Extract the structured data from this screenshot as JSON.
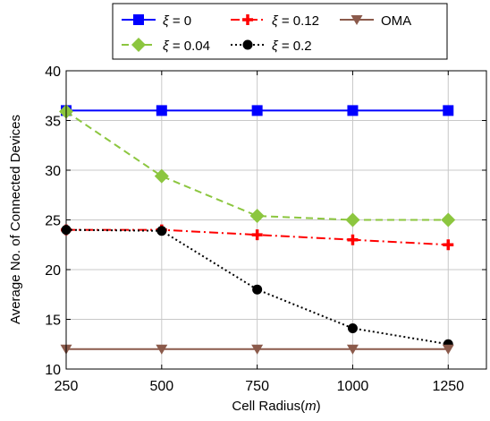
{
  "chart_data": {
    "type": "line",
    "title": "",
    "xlabel": "Cell Radius(m)",
    "xlabel_text": "Cell Radius(",
    "xlabel_unit": "m",
    "xlabel_close": ")",
    "ylabel": "Average No. of Connected Devices",
    "xlim": [
      250,
      1350
    ],
    "ylim": [
      10,
      40
    ],
    "xticks": [
      250,
      500,
      750,
      1000,
      1250
    ],
    "yticks": [
      10,
      15,
      20,
      25,
      30,
      35,
      40
    ],
    "grid": true,
    "legend_position": "top",
    "x": [
      250,
      500,
      750,
      1000,
      1250
    ],
    "series": [
      {
        "name_sym": "ξ",
        "name_rest": " = 0",
        "name": "ξ = 0",
        "color": "#0000ff",
        "line": "solid",
        "marker": "square",
        "values": [
          36,
          36,
          36,
          36,
          36
        ]
      },
      {
        "name_sym": "ξ",
        "name_rest": " = 0.04",
        "name": "ξ = 0.04",
        "color": "#8cc63f",
        "line": "dashed",
        "marker": "diamond",
        "values": [
          35.9,
          29.4,
          25.4,
          25.0,
          25.0
        ]
      },
      {
        "name_sym": "ξ",
        "name_rest": " = 0.12",
        "name": "ξ = 0.12",
        "color": "#ff0000",
        "line": "dashdot",
        "marker": "plus",
        "values": [
          24.0,
          24.0,
          23.5,
          23.0,
          22.5
        ]
      },
      {
        "name_sym": "ξ",
        "name_rest": " = 0.2",
        "name": "ξ = 0.2",
        "color": "#000000",
        "line": "dotted",
        "marker": "circle",
        "values": [
          24.0,
          23.9,
          18.0,
          14.1,
          12.5
        ]
      },
      {
        "name_sym": "",
        "name_rest": "OMA",
        "name": "OMA",
        "color": "#8b5a4b",
        "line": "solid",
        "marker": "triangle-down",
        "values": [
          12,
          12,
          12,
          12,
          12
        ]
      }
    ]
  }
}
